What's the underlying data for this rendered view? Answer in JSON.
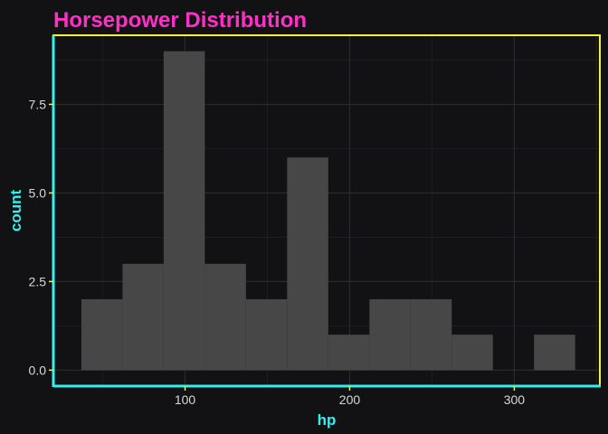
{
  "chart_data": {
    "type": "histogram",
    "title": "Horsepower Distribution",
    "xlabel": "hp",
    "ylabel": "count",
    "bins": [
      {
        "x0": 37.0,
        "x1": 62.0,
        "count": 2
      },
      {
        "x0": 62.0,
        "x1": 87.0,
        "count": 3
      },
      {
        "x0": 87.0,
        "x1": 112.0,
        "count": 9
      },
      {
        "x0": 112.0,
        "x1": 137.0,
        "count": 3
      },
      {
        "x0": 137.0,
        "x1": 162.0,
        "count": 2
      },
      {
        "x0": 162.0,
        "x1": 187.0,
        "count": 6
      },
      {
        "x0": 187.0,
        "x1": 212.0,
        "count": 1
      },
      {
        "x0": 212.0,
        "x1": 237.0,
        "count": 2
      },
      {
        "x0": 237.0,
        "x1": 262.0,
        "count": 2
      },
      {
        "x0": 262.0,
        "x1": 287.0,
        "count": 1
      },
      {
        "x0": 287.0,
        "x1": 312.0,
        "count": 0
      },
      {
        "x0": 312.0,
        "x1": 337.0,
        "count": 1
      }
    ],
    "xlim": [
      20,
      352
    ],
    "ylim": [
      -0.45,
      9.45
    ],
    "x_ticks": [
      100,
      200,
      300
    ],
    "y_ticks": [
      0,
      2.5,
      5,
      7.5
    ],
    "x_tick_labels": [
      "100",
      "200",
      "300"
    ],
    "y_tick_labels": [
      "0.0",
      "2.5",
      "5.0",
      "7.5"
    ],
    "grid": true,
    "colors": {
      "background": "#121214",
      "bar": "#474747",
      "title": "#ff2fc8",
      "axis_title": "#33f0ec",
      "tick_label": "#d8d8d8",
      "panel_border": "#f2f23a",
      "axis_line": "#33f0ec",
      "grid_major": "#2a2a2e",
      "grid_minor": "#1e1e22"
    }
  }
}
